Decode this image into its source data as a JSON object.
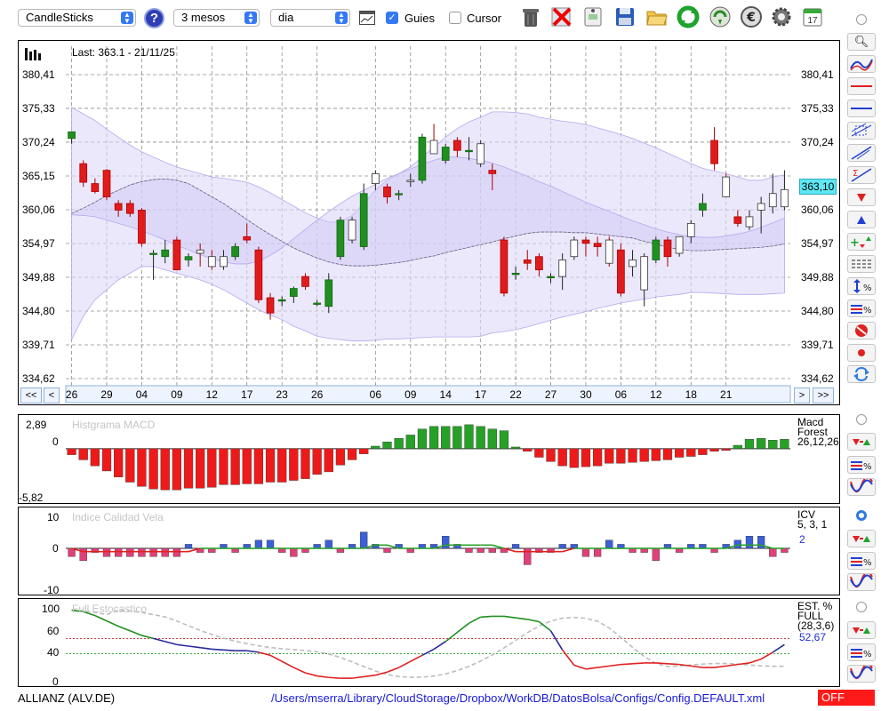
{
  "toolbar": {
    "chart_type": "CandleSticks",
    "period": "3 mesos",
    "interval": "dia",
    "guides_label": "Guies",
    "guides_checked": true,
    "cursor_label": "Cursor",
    "cursor_checked": false,
    "calendar_day": "17"
  },
  "main_chart": {
    "last_label": "Last: 363.1 - 21/11/25",
    "current_price": "363,10",
    "y_ticks": [
      "380,41",
      "375,33",
      "370,24",
      "365,15",
      "360,06",
      "354,97",
      "349,88",
      "344,80",
      "339,71",
      "334,62"
    ],
    "x_ticks": [
      "26",
      "29",
      "04",
      "09",
      "12",
      "17",
      "23",
      "26",
      "06",
      "09",
      "14",
      "17",
      "22",
      "27",
      "30",
      "06",
      "12",
      "18",
      "21"
    ]
  },
  "nav": {
    "first": "<<",
    "prev": "<",
    "next": ">",
    "last": ">>"
  },
  "macd": {
    "title": "Histgrama MACD",
    "label_name": "Macd",
    "label_name2": "Forest",
    "label_params": "26,12,26",
    "y_top": "2,89",
    "y_zero": "0",
    "y_bottom": "-5,82"
  },
  "icv": {
    "title": "Indice Calidad Vela",
    "label_name": "ICV",
    "label_params": "5, 3, 1",
    "value": "2",
    "y_top": "10",
    "y_zero": "0",
    "y_bottom": "-10"
  },
  "stoch": {
    "title": "Full Estocastico",
    "label_name": "EST. %",
    "label_name2": "FULL",
    "label_params": "(28,3,6)",
    "value": "52,67",
    "y_100": "100",
    "y_60": "60",
    "y_40": "40",
    "y_0": "0"
  },
  "status": {
    "ticker": "ALLIANZ (ALV.DE)",
    "path": "/Users/mserra/Library/CloudStorage/Dropbox/WorkDB/DatosBolsa/Configs/Config.DEFAULT.xml",
    "mode": "OFF"
  },
  "colors": {
    "bull": "#1f8f1f",
    "bear": "#e11b1b",
    "band": "#ded8f8",
    "hist_pos": "#26a126",
    "hist_neg": "#ee1a1a",
    "icv_pos": "#3a5fd9",
    "icv_neg": "#e0407a"
  },
  "chart_data": {
    "type": "candlestick",
    "ylim": [
      334.62,
      380.41
    ],
    "candles": [
      {
        "o": 370.8,
        "h": 371.8,
        "l": 370.0,
        "c": 371.8
      },
      {
        "o": 367.0,
        "h": 367.5,
        "l": 363.5,
        "c": 364.2
      },
      {
        "o": 364.0,
        "h": 364.8,
        "l": 362.5,
        "c": 362.8
      },
      {
        "o": 366.0,
        "h": 366.2,
        "l": 361.5,
        "c": 362.0
      },
      {
        "o": 361.0,
        "h": 361.5,
        "l": 359.0,
        "c": 360.0
      },
      {
        "o": 361.0,
        "h": 361.5,
        "l": 359.0,
        "c": 359.5
      },
      {
        "o": 360.0,
        "h": 360.3,
        "l": 354.5,
        "c": 355.0
      },
      {
        "o": 353.5,
        "h": 354.0,
        "l": 349.5,
        "c": 353.5
      },
      {
        "o": 353.0,
        "h": 355.5,
        "l": 352.0,
        "c": 354.0
      },
      {
        "o": 355.5,
        "h": 356.0,
        "l": 351.0,
        "c": 351.0
      },
      {
        "o": 352.5,
        "h": 353.5,
        "l": 351.5,
        "c": 353.0
      },
      {
        "o": 354.0,
        "h": 355.0,
        "l": 351.5,
        "c": 353.5
      },
      {
        "o": 353.0,
        "h": 354.0,
        "l": 351.0,
        "c": 351.5
      },
      {
        "o": 351.5,
        "h": 354.0,
        "l": 351.0,
        "c": 353.0
      },
      {
        "o": 353.0,
        "h": 355.0,
        "l": 352.5,
        "c": 354.5
      },
      {
        "o": 356.0,
        "h": 358.0,
        "l": 355.0,
        "c": 355.5
      },
      {
        "o": 354.0,
        "h": 354.5,
        "l": 346.0,
        "c": 346.5
      },
      {
        "o": 346.8,
        "h": 347.5,
        "l": 343.5,
        "c": 344.5
      },
      {
        "o": 346.5,
        "h": 347.0,
        "l": 345.5,
        "c": 346.5
      },
      {
        "o": 347.0,
        "h": 348.5,
        "l": 346.0,
        "c": 348.2
      },
      {
        "o": 350.0,
        "h": 350.5,
        "l": 348.0,
        "c": 348.5
      },
      {
        "o": 346.0,
        "h": 346.5,
        "l": 345.5,
        "c": 346.0
      },
      {
        "o": 345.5,
        "h": 350.5,
        "l": 344.5,
        "c": 349.5
      },
      {
        "o": 353.0,
        "h": 359.0,
        "l": 352.5,
        "c": 358.5
      },
      {
        "o": 355.5,
        "h": 359.0,
        "l": 355.0,
        "c": 358.5
      },
      {
        "o": 354.5,
        "h": 364.0,
        "l": 354.0,
        "c": 362.5
      },
      {
        "o": 364.0,
        "h": 366.0,
        "l": 363.0,
        "c": 365.5
      },
      {
        "o": 363.5,
        "h": 364.0,
        "l": 361.0,
        "c": 362.0
      },
      {
        "o": 362.5,
        "h": 363.0,
        "l": 361.5,
        "c": 362.5
      },
      {
        "o": 364.5,
        "h": 365.5,
        "l": 363.5,
        "c": 364.5
      },
      {
        "o": 364.5,
        "h": 371.5,
        "l": 364.0,
        "c": 371.0
      },
      {
        "o": 370.5,
        "h": 373.0,
        "l": 368.5,
        "c": 368.5
      },
      {
        "o": 367.5,
        "h": 370.0,
        "l": 367.0,
        "c": 369.5
      },
      {
        "o": 370.5,
        "h": 371.0,
        "l": 368.0,
        "c": 369.0
      },
      {
        "o": 369.0,
        "h": 371.0,
        "l": 367.5,
        "c": 369.0
      },
      {
        "o": 367.0,
        "h": 370.5,
        "l": 366.5,
        "c": 370.0
      },
      {
        "o": 366.0,
        "h": 367.0,
        "l": 363.0,
        "c": 365.5
      },
      {
        "o": 355.5,
        "h": 356.0,
        "l": 347.0,
        "c": 347.5
      },
      {
        "o": 350.5,
        "h": 351.5,
        "l": 349.5,
        "c": 350.5
      },
      {
        "o": 352.5,
        "h": 354.0,
        "l": 351.0,
        "c": 352.0
      },
      {
        "o": 353.0,
        "h": 353.5,
        "l": 350.0,
        "c": 351.0
      },
      {
        "o": 350.0,
        "h": 350.5,
        "l": 349.0,
        "c": 350.0
      },
      {
        "o": 350.0,
        "h": 353.5,
        "l": 348.0,
        "c": 352.5
      },
      {
        "o": 353.0,
        "h": 356.0,
        "l": 352.5,
        "c": 355.5
      },
      {
        "o": 355.5,
        "h": 356.0,
        "l": 353.0,
        "c": 355.0
      },
      {
        "o": 355.0,
        "h": 356.0,
        "l": 353.0,
        "c": 354.5
      },
      {
        "o": 355.5,
        "h": 356.0,
        "l": 351.5,
        "c": 352.0
      },
      {
        "o": 354.0,
        "h": 355.0,
        "l": 347.0,
        "c": 347.5
      },
      {
        "o": 351.5,
        "h": 354.0,
        "l": 350.0,
        "c": 352.5
      },
      {
        "o": 348.0,
        "h": 353.5,
        "l": 345.5,
        "c": 353.0
      },
      {
        "o": 352.5,
        "h": 356.0,
        "l": 352.0,
        "c": 355.5
      },
      {
        "o": 355.5,
        "h": 356.0,
        "l": 351.5,
        "c": 353.0
      },
      {
        "o": 353.5,
        "h": 356.0,
        "l": 353.0,
        "c": 356.0
      },
      {
        "o": 356.0,
        "h": 358.5,
        "l": 355.0,
        "c": 358.0
      },
      {
        "o": 360.0,
        "h": 362.5,
        "l": 359.0,
        "c": 361.0
      },
      {
        "o": 370.5,
        "h": 372.5,
        "l": 366.0,
        "c": 367.0
      },
      {
        "o": 365.0,
        "h": 365.5,
        "l": 362.0,
        "c": 362.0
      },
      {
        "o": 359.0,
        "h": 360.0,
        "l": 357.5,
        "c": 358.0
      },
      {
        "o": 357.5,
        "h": 360.0,
        "l": 357.0,
        "c": 359.0
      },
      {
        "o": 360.0,
        "h": 362.0,
        "l": 356.5,
        "c": 361.0
      },
      {
        "o": 360.5,
        "h": 365.5,
        "l": 359.5,
        "c": 362.5
      },
      {
        "o": 360.5,
        "h": 366.0,
        "l": 360.0,
        "c": 363.1
      }
    ],
    "upper_band": [
      375.5,
      374.5,
      373.5,
      372.2,
      371.0,
      369.8,
      368.8,
      368.0,
      367.2,
      366.5,
      366.0,
      365.5,
      365.0,
      364.8,
      364.5,
      364.2,
      363.5,
      362.6,
      361.6,
      360.6,
      359.6,
      358.8,
      358.2,
      358.2,
      359.2,
      361.0,
      363.0,
      364.5,
      365.5,
      366.5,
      368.0,
      369.5,
      371.0,
      372.3,
      373.3,
      374.0,
      374.8,
      374.8,
      374.7,
      374.5,
      374.0,
      373.7,
      373.4,
      373.2,
      372.9,
      372.4,
      371.9,
      371.4,
      370.8,
      370.1,
      369.4,
      368.6,
      367.8,
      367.0,
      366.3,
      365.9,
      365.5,
      365.0,
      364.5,
      364.5,
      365.0,
      365.3
    ],
    "lower_band": [
      340.5,
      344.0,
      346.5,
      348.0,
      349.5,
      350.5,
      351.5,
      351.5,
      351.0,
      350.5,
      350.0,
      349.5,
      348.8,
      348.0,
      347.0,
      346.0,
      345.0,
      344.2,
      343.5,
      342.5,
      341.8,
      341.0,
      340.7,
      340.5,
      340.3,
      340.3,
      340.4,
      340.6,
      340.6,
      340.7,
      340.8,
      340.9,
      340.9,
      340.9,
      340.9,
      341.0,
      341.5,
      341.7,
      342.0,
      342.4,
      342.9,
      343.4,
      343.9,
      344.3,
      344.7,
      345.2,
      345.6,
      346.0,
      346.3,
      346.6,
      346.9,
      347.1,
      347.3,
      347.6,
      347.6,
      347.5,
      347.4,
      347.3,
      347.3,
      347.3,
      347.4,
      347.5
    ],
    "mid_band": [
      359.5,
      360.3,
      361.2,
      362.2,
      363.0,
      363.8,
      364.3,
      364.6,
      364.7,
      364.5,
      364.0,
      363.0,
      362.0,
      361.0,
      359.8,
      358.6,
      357.4,
      356.3,
      355.3,
      354.3,
      353.5,
      352.8,
      352.2,
      351.8,
      351.6,
      351.6,
      351.7,
      351.9,
      352.1,
      352.4,
      352.8,
      353.1,
      353.6,
      354.0,
      354.4,
      354.8,
      355.2,
      355.7,
      356.1,
      356.5,
      356.7,
      356.7,
      356.7,
      356.6,
      356.6,
      356.4,
      356.2,
      356.0,
      355.8,
      355.3,
      354.9,
      354.4,
      354.1,
      353.9,
      353.9,
      354.0,
      354.1,
      354.2,
      354.3,
      354.4,
      354.6,
      354.9
    ],
    "inner_upper": [
      359.3,
      359.2,
      359.0,
      358.5,
      358.0,
      357.5,
      356.9,
      356.2,
      355.5,
      354.7,
      354.0,
      353.3,
      352.7,
      352.2,
      351.9,
      351.9,
      352.3,
      353.2,
      354.3,
      355.7,
      357.1,
      358.5,
      359.8,
      361.0,
      362.1,
      363.0,
      363.9,
      364.8,
      365.5,
      366.2,
      366.9,
      367.5,
      368.0,
      368.0,
      367.8,
      367.5,
      367.1,
      366.5,
      365.8,
      365.1,
      364.3,
      363.6,
      362.8,
      362.0,
      361.2,
      360.5,
      359.8,
      359.1,
      358.4,
      357.8,
      357.2,
      356.7,
      356.3,
      356.0,
      355.9,
      355.9,
      356.1,
      356.4,
      356.8,
      357.4,
      358.1,
      358.8
    ],
    "macd_hist": [
      -0.7,
      -1.3,
      -2.0,
      -2.6,
      -3.3,
      -3.9,
      -4.4,
      -4.7,
      -4.8,
      -4.8,
      -4.6,
      -4.6,
      -4.5,
      -4.2,
      -4.2,
      -4.1,
      -4.1,
      -3.9,
      -3.9,
      -3.7,
      -3.5,
      -3.0,
      -2.7,
      -1.9,
      -1.3,
      -0.6,
      0.3,
      0.8,
      1.2,
      1.6,
      2.3,
      2.6,
      2.6,
      2.6,
      2.8,
      2.6,
      2.3,
      2.1,
      0.2,
      -0.3,
      -1.0,
      -1.5,
      -2.0,
      -2.2,
      -2.1,
      -2.0,
      -1.7,
      -1.7,
      -1.6,
      -1.5,
      -1.4,
      -1.3,
      -1.0,
      -0.9,
      -0.7,
      -0.3,
      -0.2,
      0.4,
      1.1,
      1.2,
      1.0,
      1.1,
      1.2
    ],
    "icv_bars": [
      -2,
      -3,
      -1,
      -2,
      -2,
      -2,
      -2,
      -2,
      -2,
      -2,
      1,
      -1,
      -1,
      1,
      -1,
      1,
      2,
      2,
      -1,
      -2,
      -1,
      1,
      2,
      -1,
      1,
      4,
      1,
      -1,
      1,
      -1,
      1,
      1,
      3,
      1,
      -1,
      -1,
      -1,
      -1,
      1,
      -4,
      -1,
      -1,
      1,
      1,
      -2,
      -2,
      2,
      1,
      -1,
      -1,
      -3,
      1,
      -1,
      1,
      1,
      -1,
      1,
      2,
      3,
      3,
      -2,
      -1,
      1,
      1,
      1
    ],
    "icv_line": [
      0,
      -1,
      -1,
      -1,
      -1,
      -1,
      -1,
      -1,
      -1,
      -1,
      -1,
      0,
      0,
      0,
      0,
      0,
      0,
      0,
      0,
      0,
      0,
      0,
      0,
      0,
      0,
      0,
      1,
      1,
      0,
      0,
      0,
      0,
      1,
      1,
      1,
      1,
      1,
      0,
      -1,
      -1,
      -1,
      -1,
      -1,
      0,
      0,
      0,
      0,
      0,
      0,
      0,
      0,
      0,
      0,
      0,
      0,
      0,
      0,
      1,
      1,
      1,
      0,
      0,
      0,
      0,
      0
    ],
    "stoch_k": [
      97,
      95,
      90,
      83,
      76,
      70,
      64,
      60,
      56,
      52,
      50,
      48,
      46,
      45,
      44,
      44,
      42,
      38,
      30,
      22,
      15,
      11,
      9,
      8,
      8,
      10,
      12,
      16,
      22,
      30,
      38,
      46,
      56,
      68,
      80,
      88,
      89,
      89,
      87,
      85,
      82,
      70,
      45,
      25,
      20,
      22,
      24,
      26,
      27,
      28,
      28,
      27,
      26,
      24,
      22,
      22,
      24,
      26,
      28,
      33,
      42,
      52,
      55,
      55,
      53
    ]
  }
}
